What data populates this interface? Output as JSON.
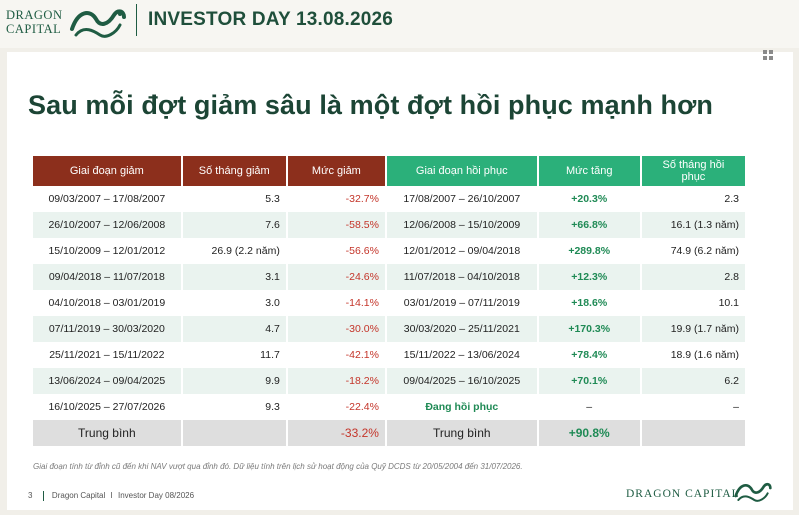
{
  "header": {
    "logo_line1": "DRAGON",
    "logo_line2": "CAPITAL",
    "event_title": "INVESTOR DAY 13.08.2026"
  },
  "headline": "Sau mỗi đợt giảm sâu là một đợt hồi phục mạnh hơn",
  "table": {
    "columns": [
      "Giai đoạn giảm",
      "Số tháng giảm",
      "Mức giảm",
      "Giai đoạn hồi phục",
      "Mức tăng",
      "Số tháng hồi phục"
    ],
    "rows": [
      {
        "decline_period": "09/03/2007 – 17/08/2007",
        "decline_months": "5.3",
        "decline_pct": "-32.7%",
        "recovery_period": "17/08/2007 – 26/10/2007",
        "gain_pct": "+20.3%",
        "recovery_months": "2.3"
      },
      {
        "decline_period": "26/10/2007 – 12/06/2008",
        "decline_months": "7.6",
        "decline_pct": "-58.5%",
        "recovery_period": "12/06/2008 – 15/10/2009",
        "gain_pct": "+66.8%",
        "recovery_months": "16.1 (1.3 năm)"
      },
      {
        "decline_period": "15/10/2009 – 12/01/2012",
        "decline_months": "26.9 (2.2 năm)",
        "decline_pct": "-56.6%",
        "recovery_period": "12/01/2012 – 09/04/2018",
        "gain_pct": "+289.8%",
        "recovery_months": "74.9 (6.2 năm)"
      },
      {
        "decline_period": "09/04/2018 – 11/07/2018",
        "decline_months": "3.1",
        "decline_pct": "-24.6%",
        "recovery_period": "11/07/2018 – 04/10/2018",
        "gain_pct": "+12.3%",
        "recovery_months": "2.8"
      },
      {
        "decline_period": "04/10/2018 – 03/01/2019",
        "decline_months": "3.0",
        "decline_pct": "-14.1%",
        "recovery_period": "03/01/2019 – 07/11/2019",
        "gain_pct": "+18.6%",
        "recovery_months": "10.1"
      },
      {
        "decline_period": "07/11/2019 – 30/03/2020",
        "decline_months": "4.7",
        "decline_pct": "-30.0%",
        "recovery_period": "30/03/2020 – 25/11/2021",
        "gain_pct": "+170.3%",
        "recovery_months": "19.9 (1.7 năm)"
      },
      {
        "decline_period": "25/11/2021 – 15/11/2022",
        "decline_months": "11.7",
        "decline_pct": "-42.1%",
        "recovery_period": "15/11/2022 – 13/06/2024",
        "gain_pct": "+78.4%",
        "recovery_months": "18.9 (1.6 năm)"
      },
      {
        "decline_period": "13/06/2024 – 09/04/2025",
        "decline_months": "9.9",
        "decline_pct": "-18.2%",
        "recovery_period": "09/04/2025 – 16/10/2025",
        "gain_pct": "+70.1%",
        "recovery_months": "6.2"
      },
      {
        "decline_period": "16/10/2025 – 27/07/2026",
        "decline_months": "9.3",
        "decline_pct": "-22.4%",
        "recovery_period": "Đang hồi phục",
        "gain_pct": "–",
        "recovery_months": "–"
      }
    ],
    "average": {
      "label": "Trung bình",
      "decline_pct": "-33.2%",
      "recovery_label": "Trung bình",
      "gain_pct": "+90.8%"
    }
  },
  "footnote": "Giai đoạn tính từ đỉnh cũ đến khi NAV vượt qua đỉnh đó. Dữ liệu tính trên lịch sử hoạt động của Quỹ DCDS từ 20/05/2004 đến 31/07/2026.",
  "footer": {
    "page_number": "3",
    "left_label": "Dragon Capital",
    "separator": "I",
    "event_label": "Investor Day 08/2026",
    "brand": "DRAGON CAPITAL"
  },
  "colors": {
    "brand_green": "#1f5c43",
    "header_red": "#8c2f1c",
    "header_green": "#2bb07a",
    "negative": "#c4352a",
    "positive": "#1f8a55",
    "row_alt": "#eaf3ef",
    "average_row": "#dedede"
  },
  "icons": [
    "dragon-logo-icon",
    "grid-menu-icon"
  ]
}
